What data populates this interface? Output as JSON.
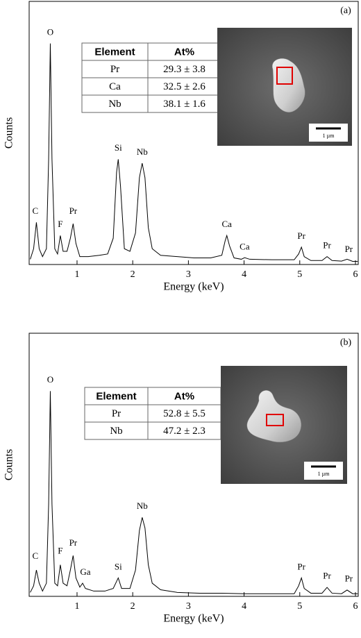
{
  "chart_data": [
    {
      "type": "line",
      "panel_label": "(a)",
      "xlabel": "Energy (keV)",
      "ylabel": "Counts",
      "xlim": [
        0.14,
        6.05
      ],
      "xticks": [
        1,
        2,
        3,
        4,
        5,
        6
      ],
      "ylim": [
        0,
        100
      ],
      "color": "#000000",
      "x": [
        0.16,
        0.22,
        0.27,
        0.32,
        0.38,
        0.45,
        0.49,
        0.52,
        0.55,
        0.6,
        0.65,
        0.7,
        0.75,
        0.82,
        0.88,
        0.93,
        0.98,
        1.05,
        1.2,
        1.4,
        1.55,
        1.65,
        1.71,
        1.74,
        1.78,
        1.85,
        1.95,
        2.05,
        2.12,
        2.17,
        2.22,
        2.28,
        2.35,
        2.5,
        2.8,
        3.1,
        3.4,
        3.6,
        3.66,
        3.69,
        3.74,
        3.82,
        3.95,
        4.01,
        4.1,
        4.5,
        4.9,
        4.98,
        5.03,
        5.08,
        5.2,
        5.4,
        5.49,
        5.58,
        5.75,
        5.85,
        5.95,
        6.04
      ],
      "values": [
        2,
        6,
        16,
        6,
        3,
        6,
        40,
        84,
        40,
        6,
        4,
        11,
        5,
        5,
        10,
        15.5,
        8,
        3,
        3,
        3.5,
        4,
        10,
        35,
        40,
        30,
        6,
        5,
        12,
        33,
        38.5,
        33,
        14,
        6,
        3.5,
        3,
        2.5,
        2.5,
        3.5,
        9,
        11,
        7,
        2.5,
        2,
        2.6,
        2,
        1.8,
        1.8,
        4,
        6.6,
        3,
        1.5,
        1.5,
        3,
        1.5,
        1.3,
        2,
        1.2,
        1.2
      ],
      "annotations": [
        {
          "text": "C",
          "x": 0.25,
          "y": 20
        },
        {
          "text": "O",
          "x": 0.52,
          "y": 88
        },
        {
          "text": "F",
          "x": 0.7,
          "y": 15
        },
        {
          "text": "Pr",
          "x": 0.93,
          "y": 20
        },
        {
          "text": "Si",
          "x": 1.74,
          "y": 44
        },
        {
          "text": "Nb",
          "x": 2.17,
          "y": 42.5
        },
        {
          "text": "Ca",
          "x": 3.69,
          "y": 15
        },
        {
          "text": "Ca",
          "x": 4.01,
          "y": 6.5
        },
        {
          "text": "Pr",
          "x": 5.03,
          "y": 10.5
        },
        {
          "text": "Pr",
          "x": 5.49,
          "y": 7
        },
        {
          "text": "Pr",
          "x": 5.88,
          "y": 5.5
        }
      ],
      "table": {
        "header": [
          "Element",
          "At%"
        ],
        "rows": [
          [
            "Pr",
            "29.3 ± 3.8"
          ],
          [
            "Ca",
            "32.5 ± 2.6"
          ],
          [
            "Nb",
            "38.1 ± 1.6"
          ]
        ]
      },
      "scale_bar": "1 µm"
    },
    {
      "type": "line",
      "panel_label": "(b)",
      "xlabel": "Energy (keV)",
      "ylabel": "Counts",
      "xlim": [
        0.14,
        6.05
      ],
      "xticks": [
        1,
        2,
        3,
        4,
        5,
        6
      ],
      "ylim": [
        0,
        100
      ],
      "color": "#000000",
      "x": [
        0.16,
        0.22,
        0.27,
        0.32,
        0.38,
        0.45,
        0.49,
        0.52,
        0.55,
        0.6,
        0.65,
        0.7,
        0.75,
        0.82,
        0.88,
        0.93,
        0.98,
        1.05,
        1.1,
        1.15,
        1.3,
        1.5,
        1.65,
        1.74,
        1.8,
        1.95,
        2.05,
        2.12,
        2.17,
        2.22,
        2.28,
        2.35,
        2.5,
        2.8,
        3.2,
        3.6,
        4.0,
        4.5,
        4.9,
        4.98,
        5.03,
        5.08,
        5.2,
        5.4,
        5.49,
        5.58,
        5.75,
        5.85,
        5.95,
        6.04
      ],
      "values": [
        1.5,
        4,
        10,
        5,
        2,
        5,
        35,
        78,
        35,
        5,
        4,
        12,
        5,
        4,
        10,
        15.5,
        7,
        3.5,
        5,
        3,
        2,
        2,
        3,
        7,
        3,
        3,
        10,
        25,
        30,
        26,
        12,
        5,
        2.5,
        1.5,
        1.2,
        1.2,
        1,
        1,
        1,
        4,
        7,
        3,
        1.2,
        1.2,
        3.4,
        1.2,
        1,
        2.4,
        1,
        1
      ],
      "annotations": [
        {
          "text": "C",
          "x": 0.25,
          "y": 15
        },
        {
          "text": "O",
          "x": 0.52,
          "y": 82
        },
        {
          "text": "F",
          "x": 0.7,
          "y": 17
        },
        {
          "text": "Pr",
          "x": 0.93,
          "y": 20
        },
        {
          "text": "Ga",
          "x": 1.15,
          "y": 9
        },
        {
          "text": "Si",
          "x": 1.74,
          "y": 11
        },
        {
          "text": "Nb",
          "x": 2.17,
          "y": 34
        },
        {
          "text": "Pr",
          "x": 5.03,
          "y": 11
        },
        {
          "text": "Pr",
          "x": 5.49,
          "y": 7.5
        },
        {
          "text": "Pr",
          "x": 5.88,
          "y": 6.5
        }
      ],
      "table": {
        "header": [
          "Element",
          "At%"
        ],
        "rows": [
          [
            "Pr",
            "52.8 ± 5.5"
          ],
          [
            "Nb",
            "47.2 ± 2.3"
          ]
        ]
      },
      "scale_bar": "1 µm"
    }
  ]
}
